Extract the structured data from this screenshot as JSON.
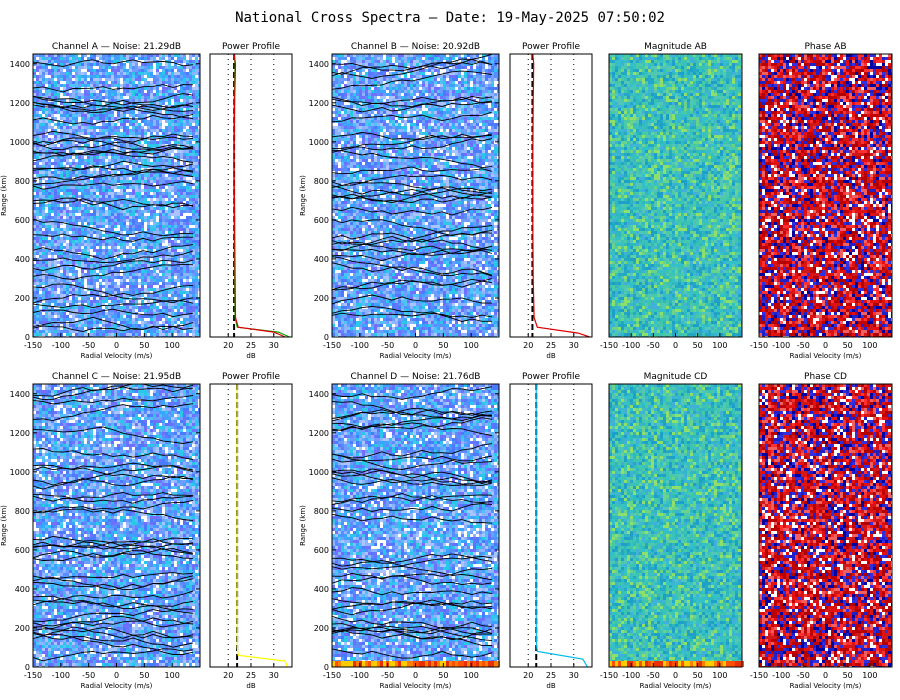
{
  "title": "National Cross Spectra — Date: 19-May-2025 07:50:02",
  "chart_data": [
    {
      "panel": "spectrum",
      "title": "Channel A — Noise: 21.29dB",
      "type": "heatmap",
      "xlabel": "Radial Velocity (m/s)",
      "ylabel": "Range (km)",
      "xlim": [
        -150,
        150
      ],
      "ylim": [
        0,
        1450
      ],
      "xticks": [
        -150,
        -100,
        -50,
        0,
        50,
        100
      ],
      "yticks": [
        0,
        200,
        400,
        600,
        800,
        1000,
        1200,
        1400
      ],
      "cmap": "spectrum",
      "seed": 11
    },
    {
      "panel": "profile",
      "title": "Power Profile",
      "type": "line",
      "xlabel": "dB",
      "xlim": [
        16,
        34
      ],
      "ylim": [
        0,
        1450
      ],
      "xticks": [
        20,
        25,
        30
      ],
      "noise_db": 21.29,
      "dash_color": "#000000",
      "series": [
        {
          "name": "",
          "color": "#00aa00",
          "range": [
            0,
            25,
            50,
            100,
            300,
            600,
            900,
            1200,
            1400,
            1450
          ],
          "db": [
            33.5,
            31,
            22,
            21.5,
            21.4,
            21.3,
            21.2,
            21.3,
            21.5,
            21.2
          ]
        },
        {
          "name": "",
          "color": "#dd0000",
          "range": [
            0,
            25,
            50,
            100,
            300,
            600,
            900,
            1200,
            1400,
            1450
          ],
          "db": [
            32.5,
            30,
            22.2,
            21.6,
            21.5,
            21.4,
            21.3,
            21.4,
            21.6,
            21.3
          ]
        }
      ]
    },
    {
      "panel": "spectrum",
      "title": "Channel B — Noise: 20.92dB",
      "type": "heatmap",
      "xlabel": "Radial Velocity (m/s)",
      "ylabel": "Range (km)",
      "xlim": [
        -150,
        150
      ],
      "ylim": [
        0,
        1450
      ],
      "xticks": [
        -150,
        -100,
        -50,
        0,
        50,
        100
      ],
      "yticks": [
        0,
        200,
        400,
        600,
        800,
        1000,
        1200,
        1400
      ],
      "cmap": "spectrum",
      "seed": 23
    },
    {
      "panel": "profile",
      "title": "Power Profile",
      "type": "line",
      "xlabel": "dB",
      "xlim": [
        16,
        34
      ],
      "ylim": [
        0,
        1450
      ],
      "xticks": [
        20,
        25,
        30
      ],
      "noise_db": 20.92,
      "dash_color": "#000000",
      "series": [
        {
          "name": "",
          "color": "#dd0000",
          "range": [
            0,
            20,
            50,
            100,
            300,
            600,
            900,
            1200,
            1400,
            1450
          ],
          "db": [
            33.5,
            31,
            22,
            21.3,
            21.1,
            21.0,
            21.0,
            21.1,
            21.2,
            21.0
          ]
        }
      ]
    },
    {
      "panel": "magnitude",
      "title": "Magnitude AB",
      "type": "heatmap",
      "xlabel": "",
      "xlim": [
        -150,
        150
      ],
      "ylim": [
        0,
        1450
      ],
      "xticks": [
        -150,
        -100,
        -50,
        0,
        50,
        100
      ],
      "cmap": "magnitude",
      "seed": 37
    },
    {
      "panel": "phase",
      "title": "Phase AB",
      "type": "heatmap",
      "xlabel": "Radial Velocity (m/s)",
      "xlim": [
        -150,
        150
      ],
      "ylim": [
        0,
        1450
      ],
      "xticks": [
        -150,
        -100,
        -50,
        0,
        50,
        100
      ],
      "cmap": "phase",
      "seed": 41
    },
    {
      "panel": "spectrum",
      "title": "Channel C — Noise: 21.95dB",
      "type": "heatmap",
      "xlabel": "Radial Velocity (m/s)",
      "ylabel": "Range (km)",
      "xlim": [
        -150,
        150
      ],
      "ylim": [
        0,
        1450
      ],
      "xticks": [
        -150,
        -100,
        -50,
        0,
        50,
        100
      ],
      "yticks": [
        0,
        200,
        400,
        600,
        800,
        1000,
        1200,
        1400
      ],
      "cmap": "spectrum",
      "seed": 53
    },
    {
      "panel": "profile",
      "title": "Power Profile",
      "type": "line",
      "xlabel": "dB",
      "xlim": [
        16,
        34
      ],
      "ylim": [
        0,
        1450
      ],
      "xticks": [
        20,
        25,
        30
      ],
      "noise_db": 21.95,
      "dash_color": "#000000",
      "series": [
        {
          "name": "",
          "color": "#ffff00",
          "range": [
            0,
            30,
            60,
            100,
            300,
            600,
            900,
            1200,
            1400,
            1450
          ],
          "db": [
            33,
            32.5,
            22.2,
            22,
            21.95,
            21.95,
            21.95,
            21.95,
            21.95,
            21.95
          ]
        }
      ]
    },
    {
      "panel": "spectrum",
      "title": "Channel D — Noise: 21.76dB",
      "type": "heatmap",
      "xlabel": "Radial Velocity (m/s)",
      "ylabel": "Range (km)",
      "xlim": [
        -150,
        150
      ],
      "ylim": [
        0,
        1450
      ],
      "xticks": [
        -150,
        -100,
        -50,
        0,
        50,
        100
      ],
      "yticks": [
        0,
        200,
        400,
        600,
        800,
        1000,
        1200,
        1400
      ],
      "cmap": "spectrum",
      "seed": 67,
      "bottom_band": true
    },
    {
      "panel": "profile",
      "title": "Power Profile",
      "type": "line",
      "xlabel": "dB",
      "xlim": [
        16,
        34
      ],
      "ylim": [
        0,
        1450
      ],
      "xticks": [
        20,
        25,
        30
      ],
      "noise_db": 21.76,
      "dash_color": "#000000",
      "series": [
        {
          "name": "",
          "color": "#00bbee",
          "range": [
            0,
            40,
            80,
            120,
            300,
            600,
            900,
            1200,
            1400,
            1450
          ],
          "db": [
            33,
            32,
            22,
            21.8,
            21.76,
            21.76,
            21.76,
            21.76,
            21.76,
            21.76
          ]
        }
      ]
    },
    {
      "panel": "magnitude",
      "title": "Magnitude CD",
      "type": "heatmap",
      "xlabel": "Radial Velocity (m/s)",
      "xlim": [
        -150,
        150
      ],
      "ylim": [
        0,
        1450
      ],
      "xticks": [
        -150,
        -100,
        -50,
        0,
        50,
        100
      ],
      "cmap": "magnitude",
      "seed": 79,
      "bottom_band": true
    },
    {
      "panel": "phase",
      "title": "Phase CD",
      "type": "heatmap",
      "xlabel": "Radial Velocity (m/s)",
      "xlim": [
        -150,
        150
      ],
      "ylim": [
        0,
        1450
      ],
      "xticks": [
        -150,
        -100,
        -50,
        0,
        50,
        100
      ],
      "cmap": "phase",
      "seed": 83
    }
  ]
}
